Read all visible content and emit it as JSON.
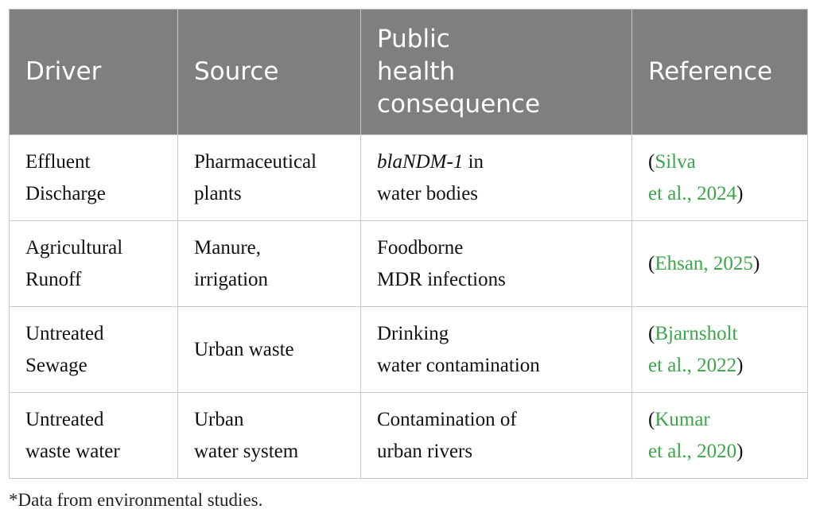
{
  "table": {
    "headers": {
      "driver": "Driver",
      "source": "Source",
      "consequence": [
        "Public",
        "health",
        "consequence"
      ],
      "reference": "Reference"
    },
    "rows": [
      {
        "driver": [
          "Effluent",
          "Discharge"
        ],
        "source": [
          "Pharmaceutical",
          "plants"
        ],
        "consequence": {
          "em": "blaNDM-1",
          "rest": " in",
          "line2": "water bodies"
        },
        "reference": {
          "open": "(",
          "link1": "Silva",
          "link2": "et al., 2024",
          "close": ")"
        }
      },
      {
        "driver": [
          "Agricultural",
          "Runoff"
        ],
        "source": [
          "Manure,",
          "irrigation"
        ],
        "consequence": [
          "Foodborne",
          "MDR infections"
        ],
        "reference": {
          "open": "(",
          "link1": "Ehsan, 2025",
          "close": ")"
        }
      },
      {
        "driver": [
          "Untreated",
          "Sewage"
        ],
        "source": [
          "Urban waste"
        ],
        "consequence": [
          "Drinking",
          "water contamination"
        ],
        "reference": {
          "open": "(",
          "link1": "Bjarnsholt",
          "link2": "et al., 2022",
          "close": ")"
        }
      },
      {
        "driver": [
          "Untreated",
          "waste water"
        ],
        "source": [
          "Urban",
          "water system"
        ],
        "consequence": [
          "Contamination of",
          "urban rivers"
        ],
        "reference": {
          "open": "(",
          "link1": "Kumar",
          "link2": "et al., 2020",
          "close": ")"
        }
      }
    ]
  },
  "footnote": "*Data from environmental studies.",
  "colors": {
    "header_bg": "#7f7f7f",
    "header_text": "#ffffff",
    "link": "#3aa64a",
    "border": "#c8c8c8"
  }
}
